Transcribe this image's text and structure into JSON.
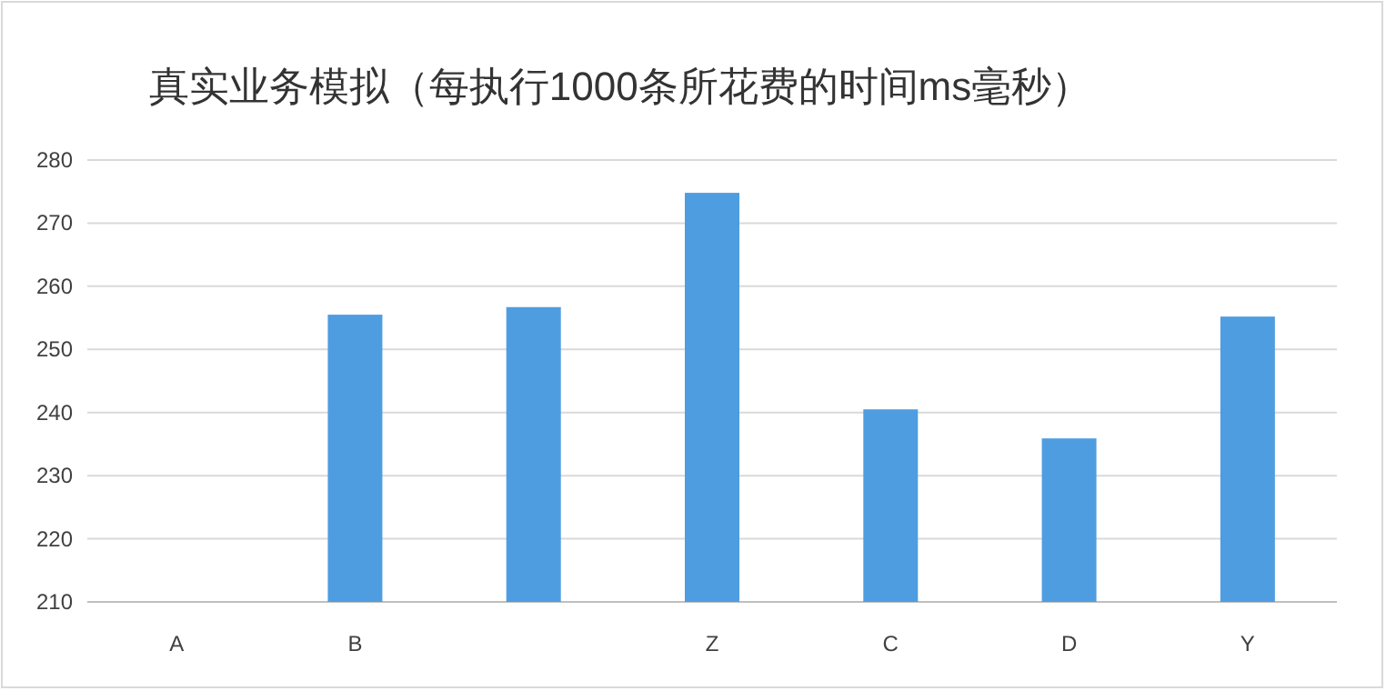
{
  "chart_data": {
    "type": "bar",
    "title": "真实业务模拟（每执行1000条所花费的时间ms毫秒）",
    "categories": [
      "A",
      "B",
      null,
      "Z",
      "C",
      "D",
      "Y"
    ],
    "values": [
      null,
      255.5,
      256.7,
      274.8,
      240.5,
      235.9,
      255.2
    ],
    "color": "#4e9de0",
    "ylim": [
      210,
      280
    ],
    "yticks": [
      210,
      220,
      230,
      240,
      250,
      260,
      270,
      280
    ],
    "grid": "y"
  }
}
